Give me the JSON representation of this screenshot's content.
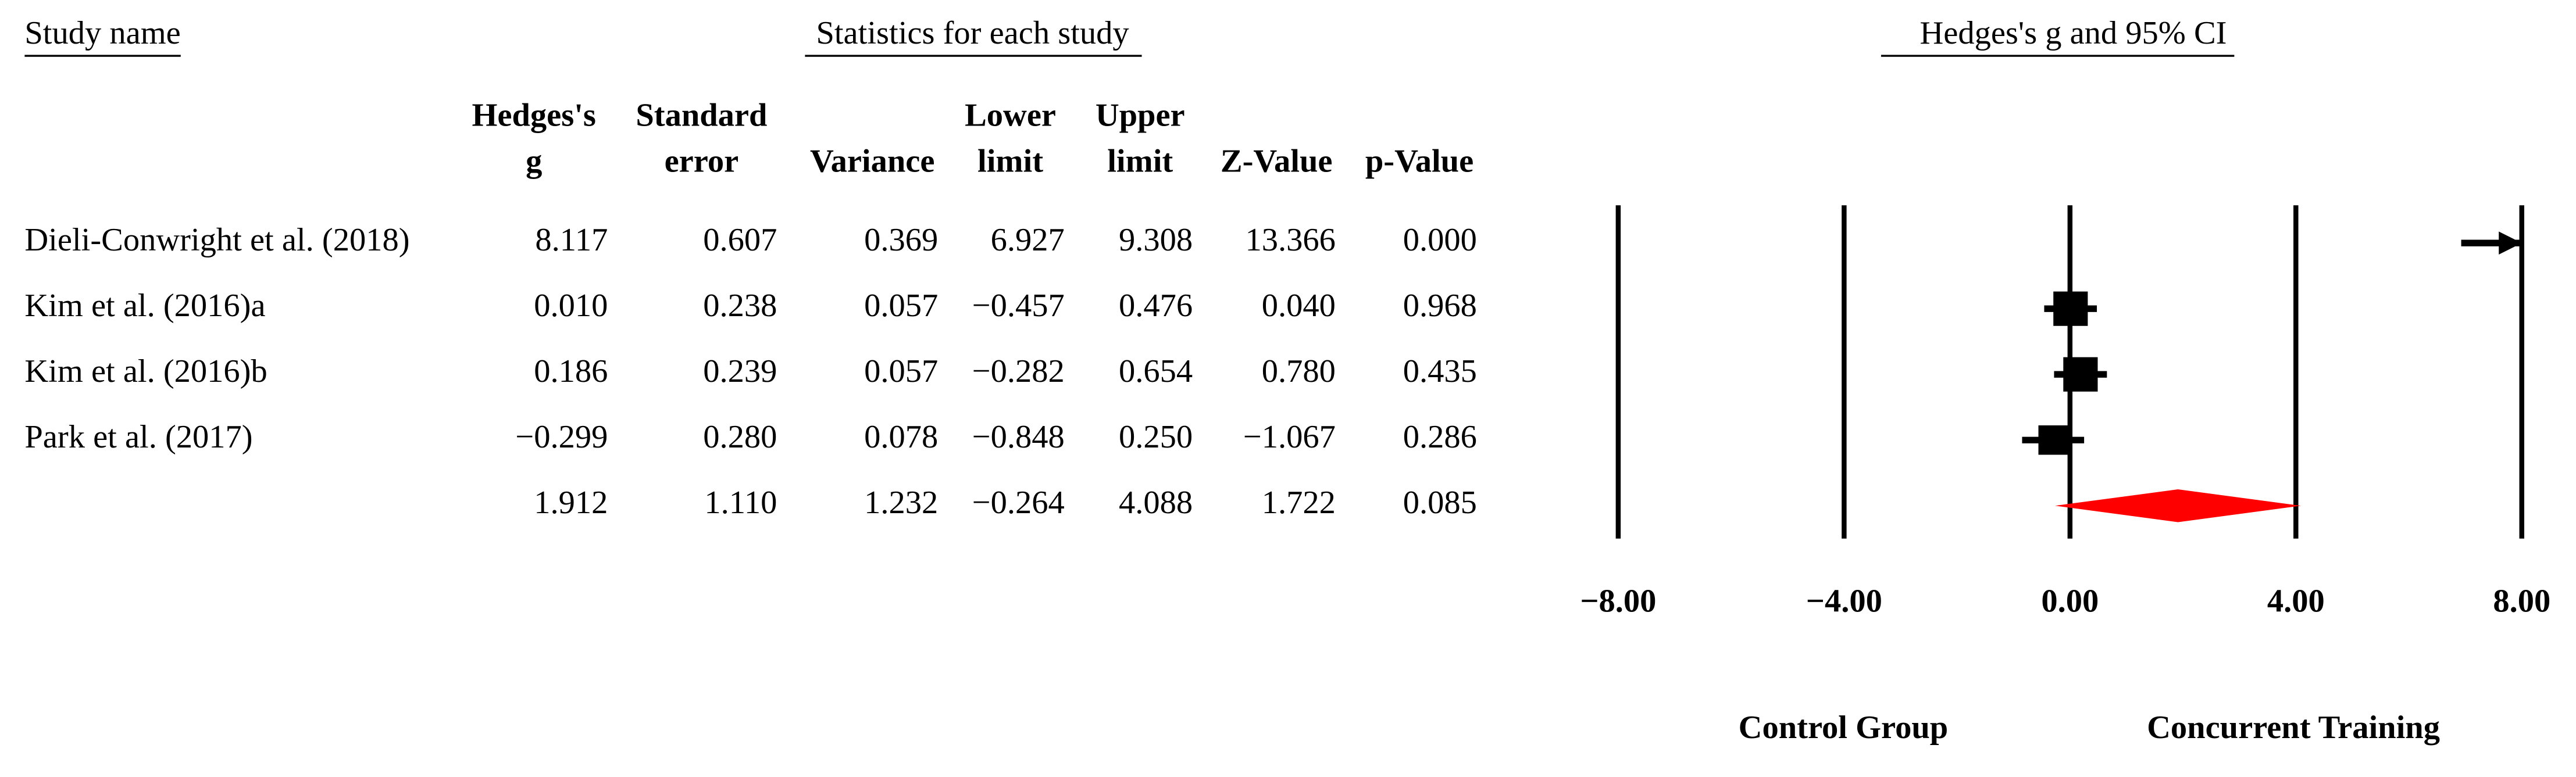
{
  "chart_data": {
    "type": "forest",
    "study_header": "Study name",
    "stats_header": "Statistics for each study",
    "title": "Hedges's g and 95% CI",
    "studies": [
      "Dieli-Conwright et al. (2018)",
      "Kim et al. (2016)a",
      "Kim et al. (2016)b",
      "Park et al. (2017)",
      null
    ],
    "columns": [
      {
        "header": [
          "Hedges's",
          "g"
        ],
        "cells": [
          "8.117",
          "0.010",
          "0.186",
          "−0.299",
          "1.912"
        ]
      },
      {
        "header": [
          "Standard",
          "error"
        ],
        "cells": [
          "0.607",
          "0.238",
          "0.239",
          "0.280",
          "1.110"
        ]
      },
      {
        "header": [
          "Variance"
        ],
        "cells": [
          "0.369",
          "0.057",
          "0.057",
          "0.078",
          "1.232"
        ]
      },
      {
        "header": [
          "Lower",
          "limit"
        ],
        "cells": [
          "6.927",
          "−0.457",
          "−0.282",
          "−0.848",
          "−0.264"
        ]
      },
      {
        "header": [
          "Upper",
          "limit"
        ],
        "cells": [
          "9.308",
          "0.476",
          "0.654",
          "0.250",
          "4.088"
        ]
      },
      {
        "header": [
          "Z-Value"
        ],
        "cells": [
          "13.366",
          "0.040",
          "0.780",
          "−1.067",
          "1.722"
        ]
      },
      {
        "header": [
          "p-Value"
        ],
        "cells": [
          "0.000",
          "0.968",
          "0.435",
          "0.286",
          "0.085"
        ]
      }
    ],
    "g": [
      8.117,
      0.01,
      0.186,
      -0.299,
      1.912
    ],
    "lower": [
      6.927,
      -0.457,
      -0.282,
      -0.848,
      -0.264
    ],
    "upper": [
      9.308,
      0.476,
      0.654,
      0.25,
      4.088
    ],
    "variance": [
      0.369,
      0.057,
      0.057,
      0.078,
      1.232
    ],
    "color": "#000000",
    "summary_color": "#ff0000",
    "xlim": [
      -8,
      8
    ],
    "xticks": [
      {
        "value": -8,
        "label": "−8.00"
      },
      {
        "value": -4,
        "label": "−4.00"
      },
      {
        "value": 0,
        "label": "0.00"
      },
      {
        "value": 4,
        "label": "4.00"
      },
      {
        "value": 8,
        "label": "8.00"
      }
    ],
    "left_label": "Control Group",
    "right_label": "Concurrent Training"
  }
}
